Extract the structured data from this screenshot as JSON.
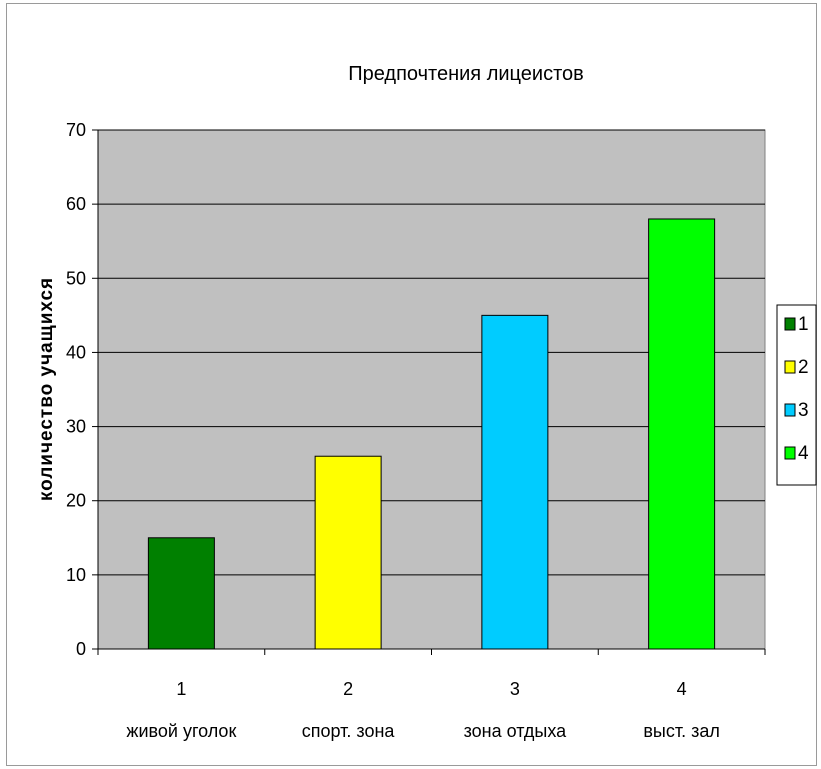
{
  "chart_data": {
    "type": "bar",
    "title": "Предпочтения лицеистов",
    "xlabel": "",
    "ylabel": "количество учащихся",
    "ylim": [
      0,
      70
    ],
    "yticks": [
      0,
      10,
      20,
      30,
      40,
      50,
      60,
      70
    ],
    "grid": true,
    "legend_position": "right",
    "categories": [
      "1",
      "2",
      "3",
      "4"
    ],
    "category_names": [
      "живой уголок",
      "спорт. зона",
      "зона отдыха",
      "выст. зал"
    ],
    "values": [
      15,
      26,
      45,
      58
    ],
    "colors": [
      "#008000",
      "#ffff00",
      "#00ccff",
      "#00ff00"
    ],
    "legend": [
      "1",
      "2",
      "3",
      "4"
    ],
    "plot_background": "#c0c0c0"
  }
}
